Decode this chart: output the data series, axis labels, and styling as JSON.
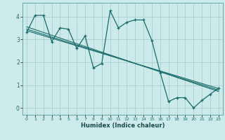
{
  "title": "",
  "xlabel": "Humidex (Indice chaleur)",
  "bg_color": "#cceaea",
  "grid_color": "#aacece",
  "line_color": "#1a6b6b",
  "xlim": [
    -0.5,
    23.5
  ],
  "ylim": [
    -0.3,
    4.6
  ],
  "yticks": [
    0,
    1,
    2,
    3,
    4
  ],
  "xticks": [
    0,
    1,
    2,
    3,
    4,
    5,
    6,
    7,
    8,
    9,
    10,
    11,
    12,
    13,
    14,
    15,
    16,
    17,
    18,
    19,
    20,
    21,
    22,
    23
  ],
  "series1_x": [
    0,
    1,
    2,
    3,
    4,
    5,
    6,
    7,
    8,
    9,
    10,
    11,
    12,
    13,
    14,
    15,
    16,
    17,
    18,
    19,
    20,
    21,
    22,
    23
  ],
  "series1_y": [
    3.3,
    4.05,
    4.05,
    2.9,
    3.5,
    3.45,
    2.6,
    3.15,
    1.75,
    1.95,
    4.25,
    3.5,
    3.75,
    3.85,
    3.85,
    2.95,
    1.55,
    0.28,
    0.45,
    0.45,
    0.0,
    0.33,
    0.6,
    0.87
  ],
  "trend1_x": [
    0,
    23
  ],
  "trend1_y": [
    3.55,
    0.72
  ],
  "trend2_x": [
    0,
    23
  ],
  "trend2_y": [
    3.38,
    0.85
  ],
  "trend3_x": [
    0,
    23
  ],
  "trend3_y": [
    3.45,
    0.78
  ]
}
